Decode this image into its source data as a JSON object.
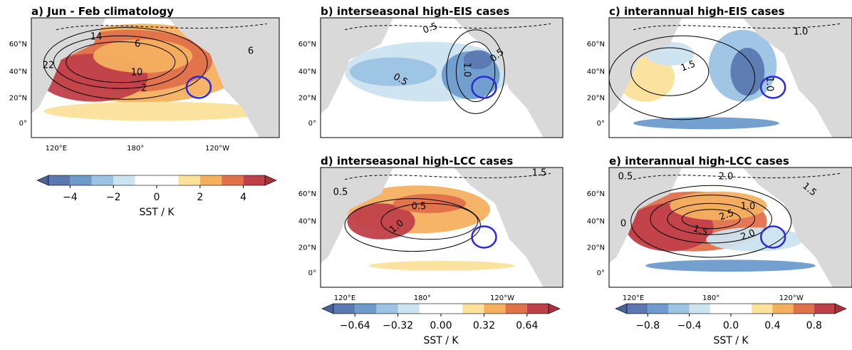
{
  "panels": [
    {
      "title": "a) Jun - Feb climatology",
      "contour_labels": [
        "14",
        "6",
        "10",
        "2",
        "22",
        "6"
      ]
    },
    {
      "title": "b) interseasonal high-EIS cases",
      "contour_labels": [
        "0.5",
        "0.5",
        "1.0",
        "0.5"
      ]
    },
    {
      "title": "c) interannual high-EIS cases",
      "contour_labels": [
        "1.0",
        "1.5",
        "1.0"
      ]
    },
    {
      "title": "d) interseasonal high-LCC cases",
      "contour_labels": [
        "1.5",
        "0.5",
        "0.5",
        "1.0"
      ]
    },
    {
      "title": "e) interannual high-LCC cases",
      "contour_labels": [
        "0.5",
        "2.0",
        "1.5",
        "1.0",
        "2.5",
        "1.5",
        "2.0",
        "0"
      ]
    }
  ],
  "axes": {
    "lat_labels": [
      "60°N",
      "40°N",
      "20°N",
      "0°"
    ],
    "lon_labels": [
      "120°E",
      "180°",
      "120°W"
    ]
  },
  "colorbars": [
    {
      "ticks": [
        "−4",
        "−2",
        "0",
        "2",
        "4"
      ],
      "label": "SST / K"
    },
    {
      "ticks": [
        "−0.64",
        "−0.32",
        "0.00",
        "0.32",
        "0.64"
      ],
      "label": "SST / K"
    },
    {
      "ticks": [
        "−0.8",
        "−0.4",
        "0.0",
        "0.4",
        "0.8"
      ],
      "label": "SST / K"
    }
  ]
}
